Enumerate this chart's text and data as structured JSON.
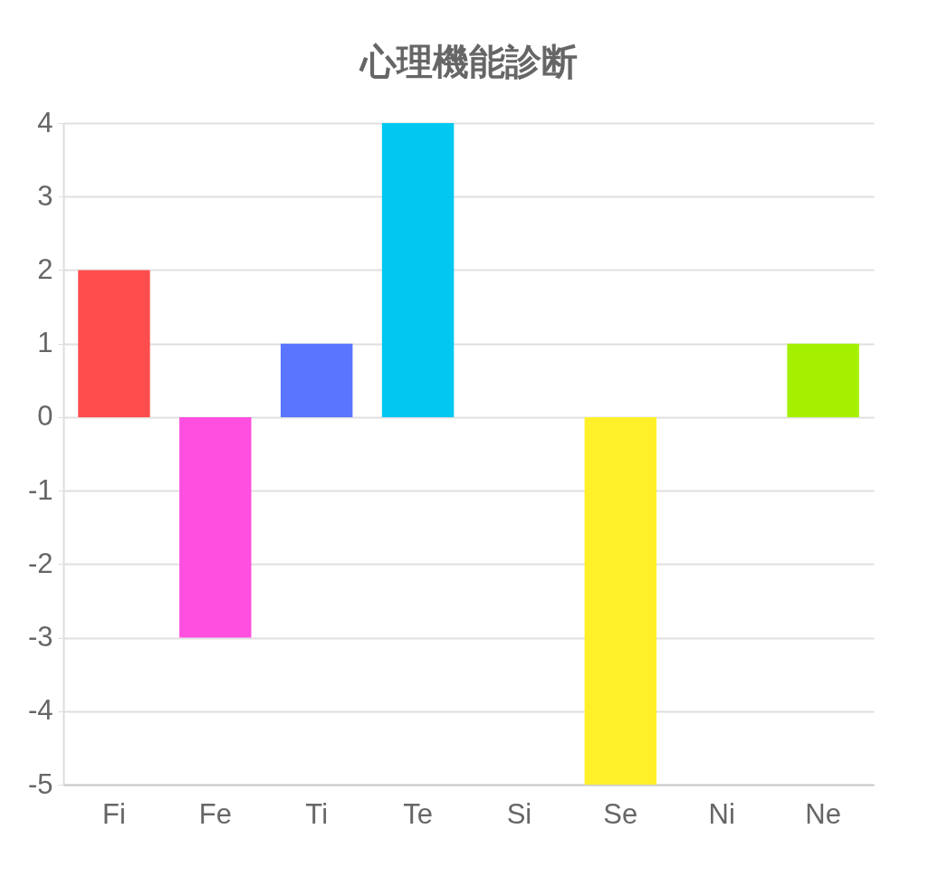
{
  "chart_data": {
    "type": "bar",
    "title": "心理機能診断",
    "categories": [
      "Fi",
      "Fe",
      "Ti",
      "Te",
      "Si",
      "Se",
      "Ni",
      "Ne"
    ],
    "values": [
      2,
      -3,
      1,
      4,
      0,
      -5,
      0,
      1
    ],
    "colors": [
      "#ff4d4d",
      "#ff4fe0",
      "#5a75ff",
      "#00c8f0",
      null,
      "#fff02a",
      null,
      "#a4f000"
    ],
    "ylim": [
      -5,
      4
    ],
    "yticks": [
      -5,
      -4,
      -3,
      -2,
      -1,
      0,
      1,
      2,
      3,
      4
    ],
    "grid": "y"
  }
}
